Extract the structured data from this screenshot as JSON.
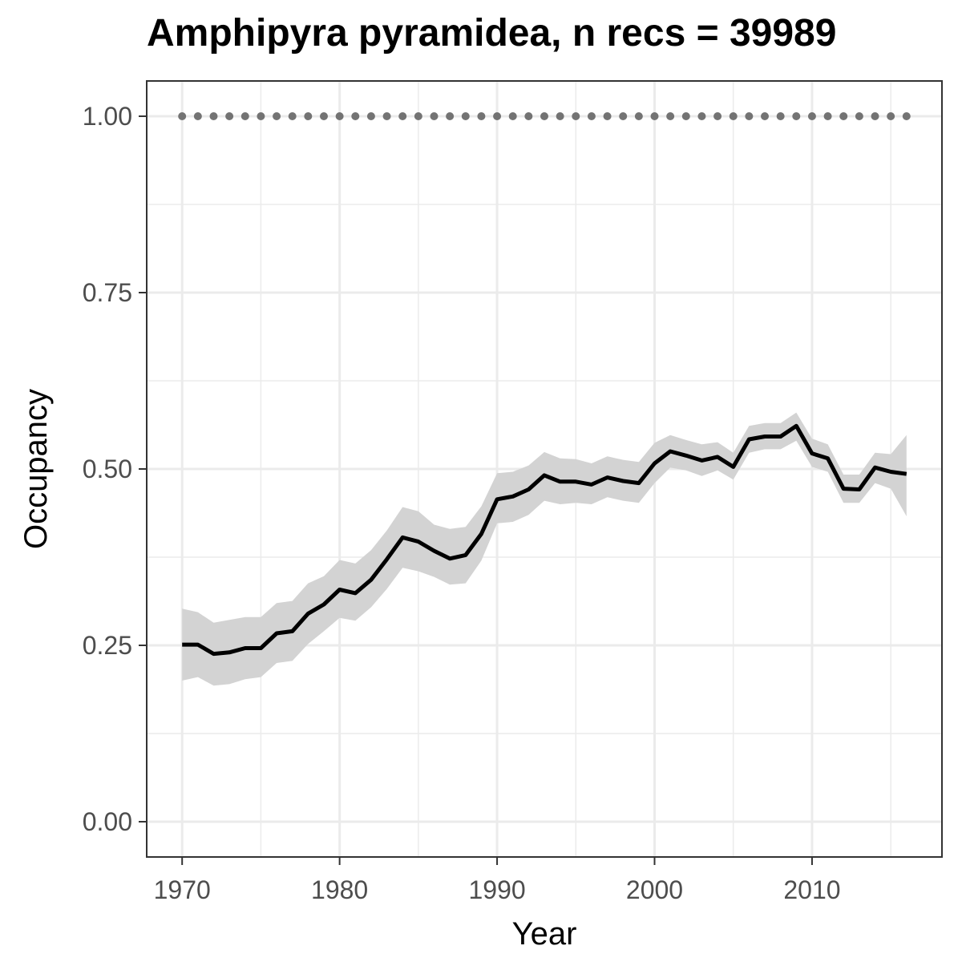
{
  "chart_data": {
    "type": "line",
    "title": "Amphipyra pyramidea, n recs = 39989",
    "xlabel": "Year",
    "ylabel": "Occupancy",
    "xlim": [
      1967.75,
      2018.25
    ],
    "ylim": [
      -0.05,
      1.05
    ],
    "x_ticks": [
      1970,
      1980,
      1990,
      2000,
      2010
    ],
    "x_tick_labels": [
      "1970",
      "1980",
      "1990",
      "2000",
      "2010"
    ],
    "y_ticks": [
      0,
      0.25,
      0.5,
      0.75,
      1.0
    ],
    "y_tick_labels": [
      "0.00",
      "0.25",
      "0.50",
      "0.75",
      "1.00"
    ],
    "grid": true,
    "legend": "none",
    "colors": {
      "line": "#000000",
      "ribbon": "#d3d3d3",
      "dots": "#737373",
      "grid": "#ebebeb",
      "panel_border": "#333333",
      "tick_text": "#4d4d4d"
    },
    "x": [
      1970,
      1971,
      1972,
      1973,
      1974,
      1975,
      1976,
      1977,
      1978,
      1979,
      1980,
      1981,
      1982,
      1983,
      1984,
      1985,
      1986,
      1987,
      1988,
      1989,
      1990,
      1991,
      1992,
      1993,
      1994,
      1995,
      1996,
      1997,
      1998,
      1999,
      2000,
      2001,
      2002,
      2003,
      2004,
      2005,
      2006,
      2007,
      2008,
      2009,
      2010,
      2011,
      2012,
      2013,
      2014,
      2015,
      2016
    ],
    "series": [
      {
        "role": "mean",
        "values": [
          0.251,
          0.251,
          0.238,
          0.24,
          0.246,
          0.246,
          0.267,
          0.27,
          0.295,
          0.308,
          0.329,
          0.324,
          0.343,
          0.372,
          0.403,
          0.397,
          0.384,
          0.373,
          0.378,
          0.408,
          0.457,
          0.461,
          0.471,
          0.491,
          0.482,
          0.482,
          0.478,
          0.488,
          0.483,
          0.48,
          0.508,
          0.525,
          0.519,
          0.512,
          0.517,
          0.503,
          0.542,
          0.546,
          0.546,
          0.561,
          0.522,
          0.515,
          0.472,
          0.471,
          0.502,
          0.496,
          0.493
        ]
      },
      {
        "role": "lower",
        "values": [
          0.2,
          0.205,
          0.193,
          0.195,
          0.202,
          0.205,
          0.225,
          0.228,
          0.252,
          0.27,
          0.289,
          0.285,
          0.304,
          0.33,
          0.36,
          0.355,
          0.347,
          0.336,
          0.338,
          0.37,
          0.423,
          0.425,
          0.435,
          0.455,
          0.45,
          0.452,
          0.45,
          0.46,
          0.455,
          0.452,
          0.48,
          0.502,
          0.498,
          0.49,
          0.498,
          0.485,
          0.523,
          0.528,
          0.528,
          0.54,
          0.503,
          0.496,
          0.452,
          0.452,
          0.48,
          0.472,
          0.433
        ]
      },
      {
        "role": "upper",
        "values": [
          0.302,
          0.297,
          0.282,
          0.286,
          0.29,
          0.29,
          0.31,
          0.313,
          0.338,
          0.348,
          0.371,
          0.366,
          0.385,
          0.413,
          0.446,
          0.44,
          0.421,
          0.415,
          0.418,
          0.447,
          0.494,
          0.496,
          0.505,
          0.524,
          0.515,
          0.514,
          0.508,
          0.518,
          0.513,
          0.51,
          0.537,
          0.548,
          0.541,
          0.535,
          0.538,
          0.523,
          0.561,
          0.565,
          0.565,
          0.58,
          0.543,
          0.535,
          0.492,
          0.492,
          0.523,
          0.521,
          0.548
        ]
      },
      {
        "role": "dotted",
        "values": [
          1,
          1,
          1,
          1,
          1,
          1,
          1,
          1,
          1,
          1,
          1,
          1,
          1,
          1,
          1,
          1,
          1,
          1,
          1,
          1,
          1,
          1,
          1,
          1,
          1,
          1,
          1,
          1,
          1,
          1,
          1,
          1,
          1,
          1,
          1,
          1,
          1,
          1,
          1,
          1,
          1,
          1,
          1,
          1,
          1,
          1,
          1
        ]
      }
    ]
  }
}
